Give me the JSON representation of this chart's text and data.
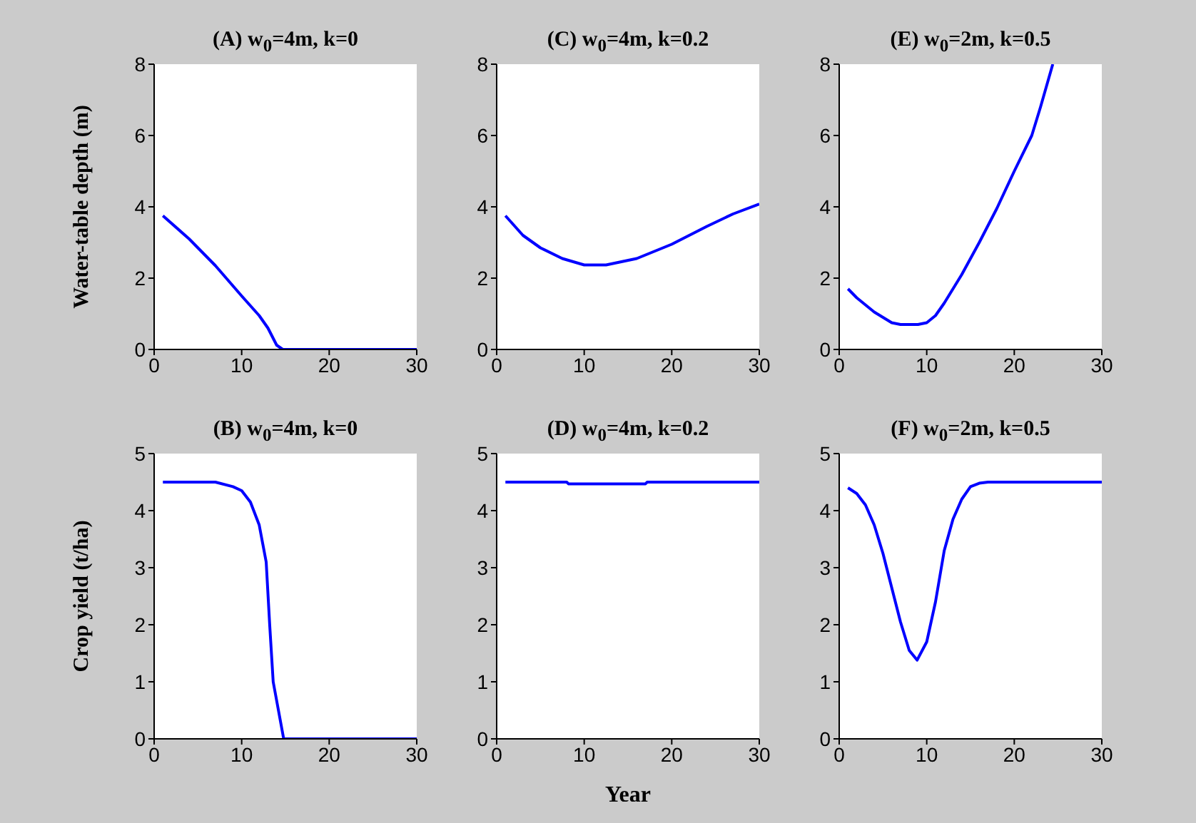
{
  "chart_data": [
    {
      "type": "line",
      "title": "(A) w$_{0}$=4m, k=0",
      "ylabel": "Water-table depth (m)",
      "x": [
        1,
        4,
        7,
        10,
        12,
        13,
        14,
        14.7,
        30
      ],
      "series": [
        {
          "color": "#0000ff",
          "values": [
            3.75,
            3.1,
            2.35,
            1.5,
            0.95,
            0.6,
            0.12,
            0,
            0
          ]
        }
      ],
      "xlim": [
        0,
        30
      ],
      "xticks": [
        0,
        10,
        20,
        30
      ],
      "ylim": [
        0,
        8
      ],
      "yticks": [
        0,
        2,
        4,
        6,
        8
      ]
    },
    {
      "type": "line",
      "title": "(C) w$_{0}$=4m, k=0.2",
      "x": [
        1,
        3,
        5,
        7.5,
        10,
        12.5,
        16,
        20,
        24,
        27,
        30
      ],
      "series": [
        {
          "color": "#0000ff",
          "values": [
            3.75,
            3.2,
            2.85,
            2.55,
            2.37,
            2.37,
            2.55,
            2.95,
            3.45,
            3.8,
            4.08
          ]
        }
      ],
      "xlim": [
        0,
        30
      ],
      "xticks": [
        0,
        10,
        20,
        30
      ],
      "ylim": [
        0,
        8
      ],
      "yticks": [
        0,
        2,
        4,
        6,
        8
      ]
    },
    {
      "type": "line",
      "title": "(E) w$_{0}$=2m, k=0.5",
      "x": [
        1,
        2,
        4,
        6,
        7,
        9,
        10,
        11,
        12,
        14,
        16,
        18,
        20,
        22,
        23,
        24.4
      ],
      "series": [
        {
          "color": "#0000ff",
          "values": [
            1.7,
            1.45,
            1.05,
            0.75,
            0.7,
            0.7,
            0.75,
            0.95,
            1.3,
            2.1,
            3.0,
            3.95,
            5.0,
            6.0,
            6.8,
            8
          ]
        }
      ],
      "xlim": [
        0,
        30
      ],
      "xticks": [
        0,
        10,
        20,
        30
      ],
      "ylim": [
        0,
        8
      ],
      "yticks": [
        0,
        2,
        4,
        6,
        8
      ]
    },
    {
      "type": "line",
      "title": "(B) w$_{0}$=4m, k=0",
      "ylabel": "Crop yield (t/ha)",
      "x": [
        1,
        7,
        9,
        10,
        11,
        12,
        12.8,
        13.2,
        13.6,
        14.8,
        30
      ],
      "series": [
        {
          "color": "#0000ff",
          "values": [
            4.5,
            4.5,
            4.42,
            4.35,
            4.15,
            3.75,
            3.1,
            2.0,
            1.0,
            0,
            0
          ]
        }
      ],
      "xlim": [
        0,
        30
      ],
      "xticks": [
        0,
        10,
        20,
        30
      ],
      "ylim": [
        0,
        5
      ],
      "yticks": [
        0,
        1,
        2,
        3,
        4,
        5
      ]
    },
    {
      "type": "line",
      "title": "(D) w$_{0}$=4m, k=0.2",
      "xlabel": "Year",
      "x": [
        1,
        8,
        8.2,
        17,
        17.2,
        30
      ],
      "series": [
        {
          "color": "#0000ff",
          "values": [
            4.5,
            4.5,
            4.47,
            4.47,
            4.5,
            4.5
          ]
        }
      ],
      "xlim": [
        0,
        30
      ],
      "xticks": [
        0,
        10,
        20,
        30
      ],
      "ylim": [
        0,
        5
      ],
      "yticks": [
        0,
        1,
        2,
        3,
        4,
        5
      ]
    },
    {
      "type": "line",
      "title": "(F) w$_{0}$=2m, k=0.5",
      "x": [
        1,
        2,
        3,
        4,
        5,
        6,
        7,
        8,
        8.9,
        10,
        11,
        12,
        13,
        14,
        15,
        16,
        17,
        30
      ],
      "series": [
        {
          "color": "#0000ff",
          "values": [
            4.4,
            4.3,
            4.1,
            3.75,
            3.25,
            2.65,
            2.05,
            1.55,
            1.38,
            1.7,
            2.4,
            3.3,
            3.85,
            4.2,
            4.42,
            4.48,
            4.5,
            4.5
          ]
        }
      ],
      "xlim": [
        0,
        30
      ],
      "xticks": [
        0,
        10,
        20,
        30
      ],
      "ylim": [
        0,
        5
      ],
      "yticks": [
        0,
        1,
        2,
        3,
        4,
        5
      ]
    }
  ]
}
